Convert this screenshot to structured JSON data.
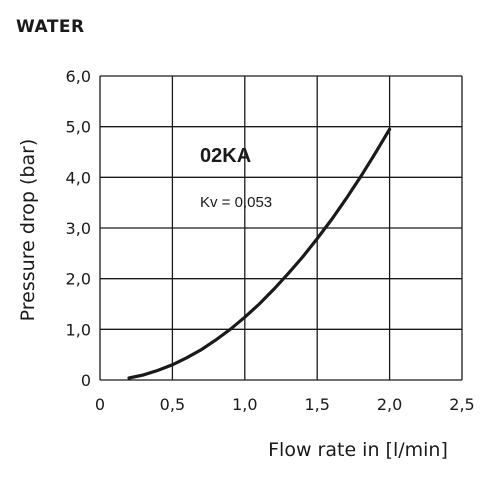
{
  "fluid_label": "WATER",
  "chart_data": {
    "type": "line",
    "xlabel": "Flow rate in [l/min]",
    "ylabel": "Pressure drop (bar)",
    "xlim": [
      0,
      2.5
    ],
    "ylim": [
      0,
      6
    ],
    "xticks": [
      0,
      0.5,
      1.0,
      1.5,
      2.0,
      2.5
    ],
    "xtick_labels": [
      "0",
      "0,5",
      "1,0",
      "1,5",
      "2,0",
      "2,5"
    ],
    "yticks": [
      0,
      1,
      2,
      3,
      4,
      5,
      6
    ],
    "ytick_labels": [
      "0",
      "1,0",
      "2,0",
      "3,0",
      "4,0",
      "5,0",
      "6,0"
    ],
    "grid": true,
    "series": [
      {
        "name": "02KA",
        "x": [
          0.2,
          0.3,
          0.4,
          0.5,
          0.6,
          0.7,
          0.8,
          0.9,
          1.0,
          1.1,
          1.2,
          1.3,
          1.4,
          1.5,
          1.6,
          1.7,
          1.8,
          1.9,
          2.0
        ],
        "y": [
          0.04,
          0.1,
          0.19,
          0.3,
          0.44,
          0.6,
          0.79,
          1.0,
          1.24,
          1.5,
          1.79,
          2.1,
          2.43,
          2.79,
          3.17,
          3.58,
          4.01,
          4.47,
          4.95
        ]
      }
    ],
    "annotations": {
      "series_label": "02KA",
      "coefficient": "Kv = 0,053"
    }
  }
}
